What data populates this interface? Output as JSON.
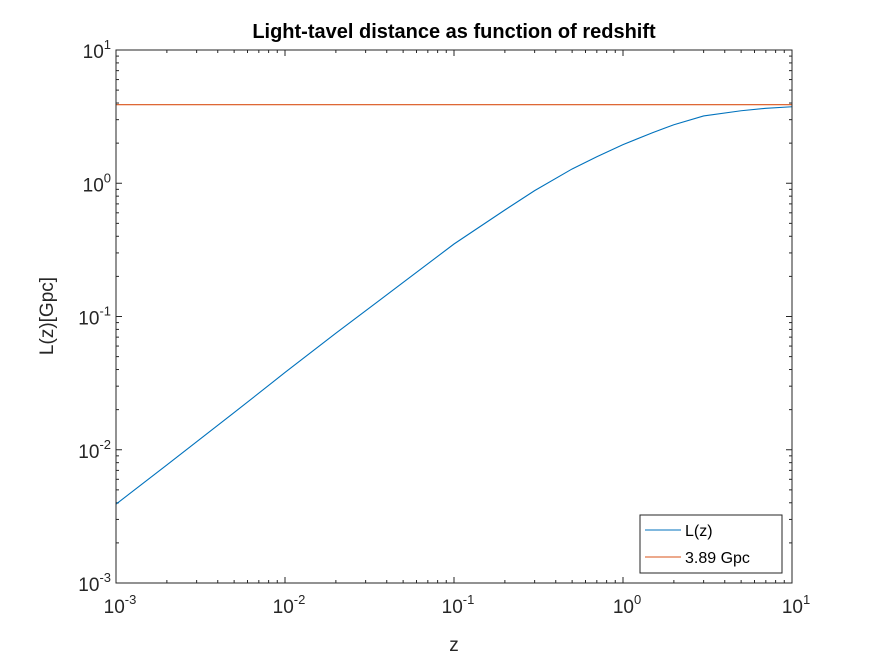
{
  "chart_data": {
    "type": "line",
    "title": "Light-tavel distance as function of redshift",
    "xlabel": "z",
    "ylabel": "L(z)[Gpc]",
    "xscale": "log",
    "yscale": "log",
    "xlim": [
      0.001,
      10
    ],
    "ylim": [
      0.001,
      10
    ],
    "grid": false,
    "legend_position": "bottom-right",
    "xticks": [
      {
        "base": "10",
        "exp": "-3"
      },
      {
        "base": "10",
        "exp": "-2"
      },
      {
        "base": "10",
        "exp": "-1"
      },
      {
        "base": "10",
        "exp": "0"
      },
      {
        "base": "10",
        "exp": "1"
      }
    ],
    "yticks": [
      {
        "base": "10",
        "exp": "-3"
      },
      {
        "base": "10",
        "exp": "-2"
      },
      {
        "base": "10",
        "exp": "-1"
      },
      {
        "base": "10",
        "exp": "0"
      },
      {
        "base": "10",
        "exp": "1"
      }
    ],
    "series": [
      {
        "name": "L(z)",
        "color": "#0072BD",
        "x": [
          0.001,
          0.002,
          0.005,
          0.01,
          0.02,
          0.05,
          0.1,
          0.2,
          0.3,
          0.5,
          0.7,
          1,
          1.5,
          2,
          3,
          5,
          7,
          10
        ],
        "y": [
          0.0039,
          0.0077,
          0.019,
          0.038,
          0.075,
          0.18,
          0.35,
          0.63,
          0.88,
          1.28,
          1.58,
          1.95,
          2.4,
          2.75,
          3.2,
          3.5,
          3.65,
          3.75
        ]
      },
      {
        "name": "3.89 Gpc",
        "color": "#D95319",
        "x": [
          0.001,
          10
        ],
        "y": [
          3.89,
          3.89
        ]
      }
    ]
  }
}
